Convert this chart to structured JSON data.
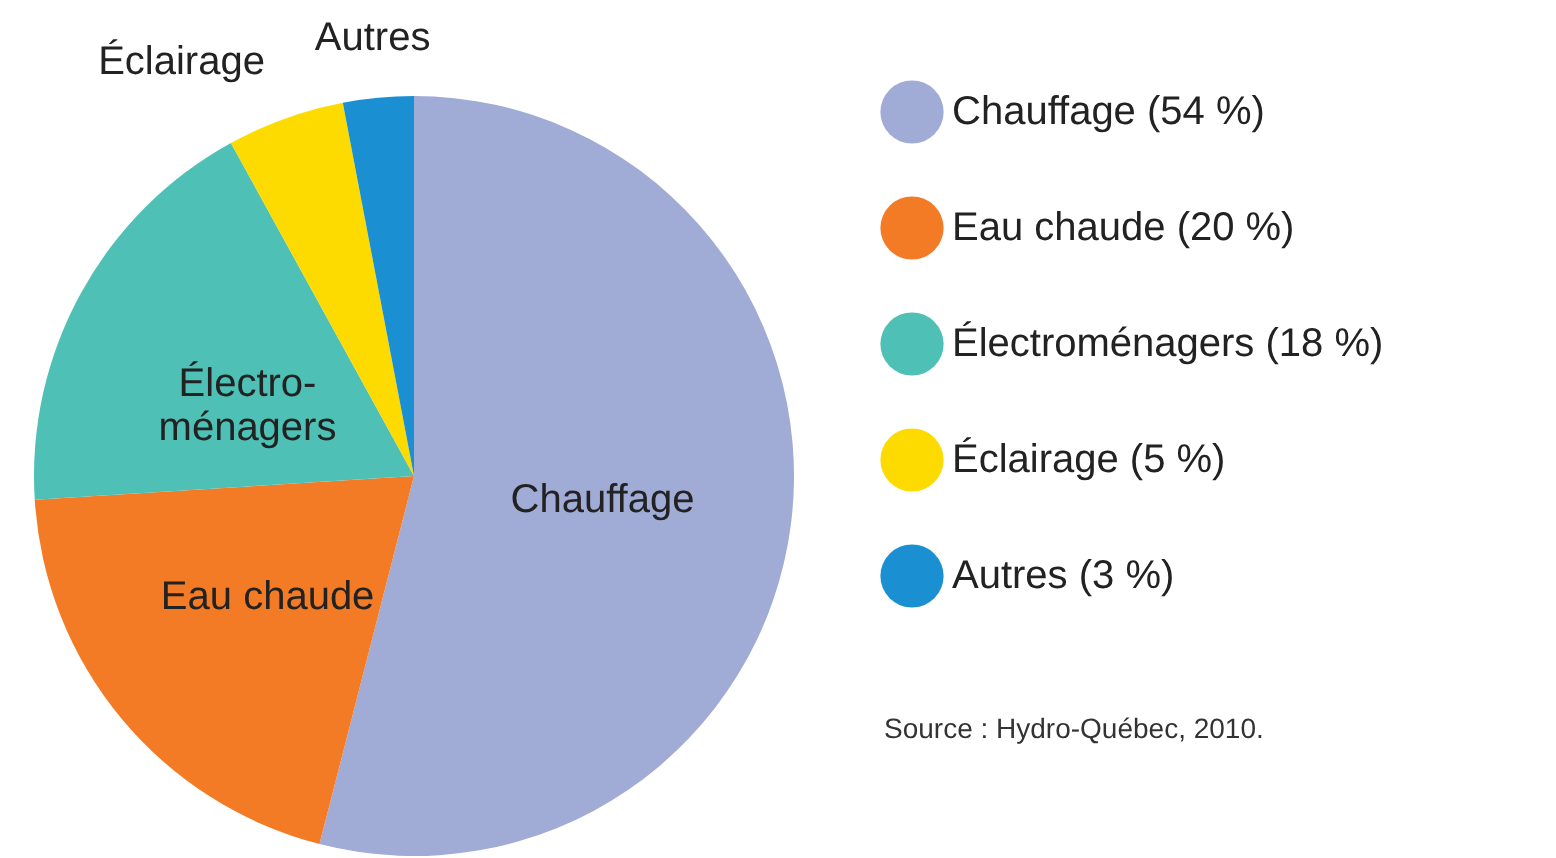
{
  "chart_data": {
    "type": "pie",
    "categories": [
      "Chauffage (54 %)",
      "Eau chaude (20 %)",
      "Électroménagers (18 %)",
      "Éclairage (5 %)",
      "Autres (3 %)"
    ],
    "values": [
      54,
      20,
      18,
      5,
      3
    ],
    "colors": [
      "#a0abd6",
      "#f47b25",
      "#4ec0b5",
      "#fedb00",
      "#1a8fd1"
    ],
    "legend": "right",
    "annotations": [
      {
        "text": "Chauffage",
        "x": "Chauffage (54 %)"
      },
      {
        "text": "Eau chaude",
        "x": "Eau chaude (20 %)"
      },
      {
        "text": "Électro-\nménagers",
        "x": "Électroménagers (18 %)"
      },
      {
        "text": "Éclairage",
        "x": "Éclairage (5 %)"
      },
      {
        "text": "Autres",
        "x": "Autres (3 %)"
      },
      "Source : Hydro-Québec, 2010."
    ]
  }
}
